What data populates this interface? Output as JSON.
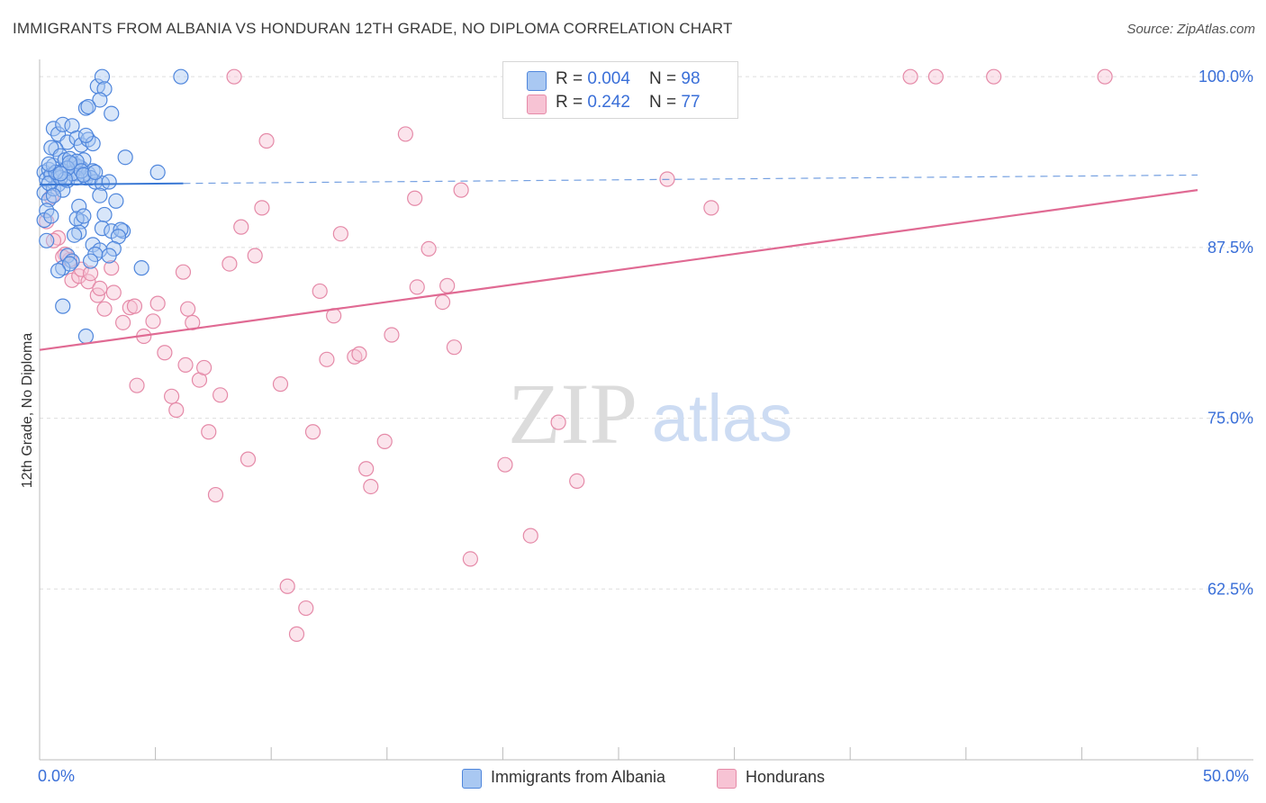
{
  "title": "IMMIGRANTS FROM ALBANIA VS HONDURAN 12TH GRADE, NO DIPLOMA CORRELATION CHART",
  "source": "Source: ZipAtlas.com",
  "watermark": {
    "zip": "ZIP",
    "atlas": "atlas"
  },
  "legend": {
    "rows": [
      {
        "r_label": "R = ",
        "r_value": "0.004",
        "n_label": "N = ",
        "n_value": "98"
      },
      {
        "r_label": "R = ",
        "r_value": "0.242",
        "n_label": "N = ",
        "n_value": "77"
      }
    ]
  },
  "bottom_legend": [
    "Immigrants from Albania",
    "Hondurans"
  ],
  "colors": {
    "albania_fill": "#a9c8f2",
    "albania_stroke": "#4f86dc",
    "albania_line": "#3a78d4",
    "honduran_fill": "#f7c3d4",
    "honduran_stroke": "#e58aa8",
    "honduran_line": "#e06a93",
    "axis_label": "#3a6fd8",
    "grid": "#dddddd"
  },
  "chart_data": {
    "type": "scatter",
    "title": "IMMIGRANTS FROM ALBANIA VS HONDURAN 12TH GRADE, NO DIPLOMA CORRELATION CHART",
    "xlabel": "",
    "ylabel": "12th Grade, No Diploma",
    "xlim": [
      0,
      50
    ],
    "ylim": [
      50,
      101
    ],
    "x_tick_labels": [
      "0.0%",
      "50.0%"
    ],
    "y_ticks": [
      62.5,
      75.0,
      87.5,
      100.0
    ],
    "y_tick_labels": [
      "62.5%",
      "75.0%",
      "87.5%",
      "100.0%"
    ],
    "series": [
      {
        "name": "Immigrants from Albania",
        "r": 0.004,
        "n": 98,
        "trend": {
          "x0": 0,
          "y0": 92.1,
          "x1": 50,
          "y1": 92.8,
          "solid_until": 6.2
        },
        "points": [
          [
            0.2,
            93.0
          ],
          [
            0.3,
            92.5
          ],
          [
            0.4,
            93.2
          ],
          [
            0.5,
            92.8
          ],
          [
            0.6,
            93.5
          ],
          [
            0.8,
            92.7
          ],
          [
            1.0,
            93.1
          ],
          [
            1.2,
            92.4
          ],
          [
            1.4,
            93.6
          ],
          [
            1.6,
            92.9
          ],
          [
            1.8,
            93.3
          ],
          [
            2.0,
            92.6
          ],
          [
            0.2,
            91.5
          ],
          [
            0.4,
            91.0
          ],
          [
            0.6,
            91.8
          ],
          [
            0.3,
            90.2
          ],
          [
            0.2,
            89.5
          ],
          [
            0.5,
            89.8
          ],
          [
            0.3,
            88.0
          ],
          [
            0.6,
            96.2
          ],
          [
            0.8,
            95.8
          ],
          [
            1.0,
            96.5
          ],
          [
            1.2,
            95.2
          ],
          [
            1.4,
            96.4
          ],
          [
            1.6,
            95.5
          ],
          [
            1.8,
            95.0
          ],
          [
            2.1,
            95.4
          ],
          [
            2.3,
            95.1
          ],
          [
            2.0,
            95.7
          ],
          [
            0.7,
            94.7
          ],
          [
            0.5,
            94.8
          ],
          [
            0.9,
            94.2
          ],
          [
            1.1,
            93.9
          ],
          [
            1.3,
            94.0
          ],
          [
            1.5,
            93.6
          ],
          [
            1.7,
            93.4
          ],
          [
            1.9,
            93.9
          ],
          [
            2.1,
            92.9
          ],
          [
            2.3,
            93.1
          ],
          [
            2.4,
            92.3
          ],
          [
            2.2,
            92.6
          ],
          [
            1.6,
            92.6
          ],
          [
            1.4,
            92.9
          ],
          [
            0.8,
            92.1
          ],
          [
            1.0,
            91.7
          ],
          [
            0.4,
            92.2
          ],
          [
            2.5,
            99.3
          ],
          [
            2.7,
            100.0
          ],
          [
            2.8,
            99.1
          ],
          [
            3.1,
            97.3
          ],
          [
            2.6,
            98.3
          ],
          [
            2.0,
            97.7
          ],
          [
            2.1,
            97.8
          ],
          [
            6.1,
            100.0
          ],
          [
            3.7,
            94.1
          ],
          [
            5.1,
            93.0
          ],
          [
            2.7,
            92.2
          ],
          [
            3.0,
            92.3
          ],
          [
            2.6,
            91.3
          ],
          [
            3.3,
            90.9
          ],
          [
            1.7,
            90.5
          ],
          [
            2.8,
            89.9
          ],
          [
            1.8,
            89.4
          ],
          [
            1.6,
            89.6
          ],
          [
            1.9,
            89.8
          ],
          [
            2.7,
            88.9
          ],
          [
            3.6,
            88.7
          ],
          [
            3.1,
            88.7
          ],
          [
            3.5,
            88.8
          ],
          [
            3.4,
            88.3
          ],
          [
            1.7,
            88.6
          ],
          [
            1.5,
            88.4
          ],
          [
            2.3,
            87.7
          ],
          [
            2.6,
            87.3
          ],
          [
            3.2,
            87.4
          ],
          [
            2.4,
            87.0
          ],
          [
            3.0,
            86.9
          ],
          [
            1.2,
            86.9
          ],
          [
            1.4,
            86.5
          ],
          [
            1.0,
            86.0
          ],
          [
            1.3,
            86.3
          ],
          [
            0.8,
            85.8
          ],
          [
            4.4,
            86.0
          ],
          [
            2.2,
            86.5
          ],
          [
            1.0,
            83.2
          ],
          [
            2.0,
            81.0
          ],
          [
            1.6,
            93.8
          ],
          [
            1.2,
            93.3
          ],
          [
            1.8,
            93.1
          ],
          [
            0.9,
            92.6
          ],
          [
            1.1,
            92.5
          ],
          [
            0.7,
            93.0
          ],
          [
            1.9,
            92.8
          ],
          [
            2.4,
            93.0
          ],
          [
            0.6,
            91.3
          ],
          [
            0.4,
            93.6
          ],
          [
            1.3,
            93.7
          ],
          [
            0.9,
            92.9
          ]
        ]
      },
      {
        "name": "Hondurans",
        "r": 0.242,
        "n": 77,
        "trend": {
          "x0": 0,
          "y0": 80.0,
          "x1": 50,
          "y1": 91.7
        },
        "points": [
          [
            0.3,
            89.4
          ],
          [
            0.5,
            91.2
          ],
          [
            0.8,
            88.2
          ],
          [
            1.1,
            87.0
          ],
          [
            1.3,
            86.6
          ],
          [
            1.4,
            85.1
          ],
          [
            1.7,
            85.4
          ],
          [
            1.8,
            85.9
          ],
          [
            2.1,
            85.0
          ],
          [
            2.2,
            85.6
          ],
          [
            2.5,
            84.0
          ],
          [
            2.8,
            83.0
          ],
          [
            3.2,
            84.2
          ],
          [
            3.1,
            86.0
          ],
          [
            3.6,
            82.0
          ],
          [
            3.9,
            83.1
          ],
          [
            4.1,
            83.2
          ],
          [
            4.5,
            81.0
          ],
          [
            4.9,
            82.1
          ],
          [
            5.1,
            83.4
          ],
          [
            5.4,
            79.8
          ],
          [
            5.7,
            76.6
          ],
          [
            5.9,
            75.6
          ],
          [
            6.2,
            85.7
          ],
          [
            6.4,
            83.0
          ],
          [
            6.6,
            82.0
          ],
          [
            6.9,
            77.8
          ],
          [
            7.1,
            78.7
          ],
          [
            7.3,
            74.0
          ],
          [
            7.6,
            69.4
          ],
          [
            7.8,
            76.7
          ],
          [
            8.2,
            86.3
          ],
          [
            8.4,
            100.0
          ],
          [
            8.7,
            89.0
          ],
          [
            9.0,
            72.0
          ],
          [
            9.3,
            86.9
          ],
          [
            9.6,
            90.4
          ],
          [
            9.8,
            95.3
          ],
          [
            10.4,
            77.5
          ],
          [
            10.7,
            62.7
          ],
          [
            11.1,
            59.2
          ],
          [
            11.5,
            61.1
          ],
          [
            11.8,
            74.0
          ],
          [
            12.1,
            84.3
          ],
          [
            12.4,
            79.3
          ],
          [
            12.7,
            82.5
          ],
          [
            13.0,
            88.5
          ],
          [
            13.6,
            79.5
          ],
          [
            13.8,
            79.7
          ],
          [
            14.1,
            71.3
          ],
          [
            14.3,
            70.0
          ],
          [
            14.9,
            73.3
          ],
          [
            15.2,
            81.1
          ],
          [
            15.8,
            95.8
          ],
          [
            16.2,
            91.1
          ],
          [
            16.8,
            87.4
          ],
          [
            16.3,
            84.6
          ],
          [
            17.4,
            83.5
          ],
          [
            17.9,
            80.2
          ],
          [
            17.6,
            84.7
          ],
          [
            18.2,
            91.7
          ],
          [
            18.6,
            64.7
          ],
          [
            20.1,
            71.6
          ],
          [
            21.2,
            66.4
          ],
          [
            22.4,
            74.7
          ],
          [
            23.2,
            70.4
          ],
          [
            27.1,
            92.5
          ],
          [
            29.0,
            90.4
          ],
          [
            37.6,
            100.0
          ],
          [
            38.7,
            100.0
          ],
          [
            41.2,
            100.0
          ],
          [
            46.0,
            100.0
          ],
          [
            6.3,
            78.9
          ],
          [
            4.2,
            77.4
          ],
          [
            2.6,
            84.5
          ],
          [
            0.6,
            88.0
          ],
          [
            1.0,
            86.8
          ]
        ]
      }
    ]
  }
}
